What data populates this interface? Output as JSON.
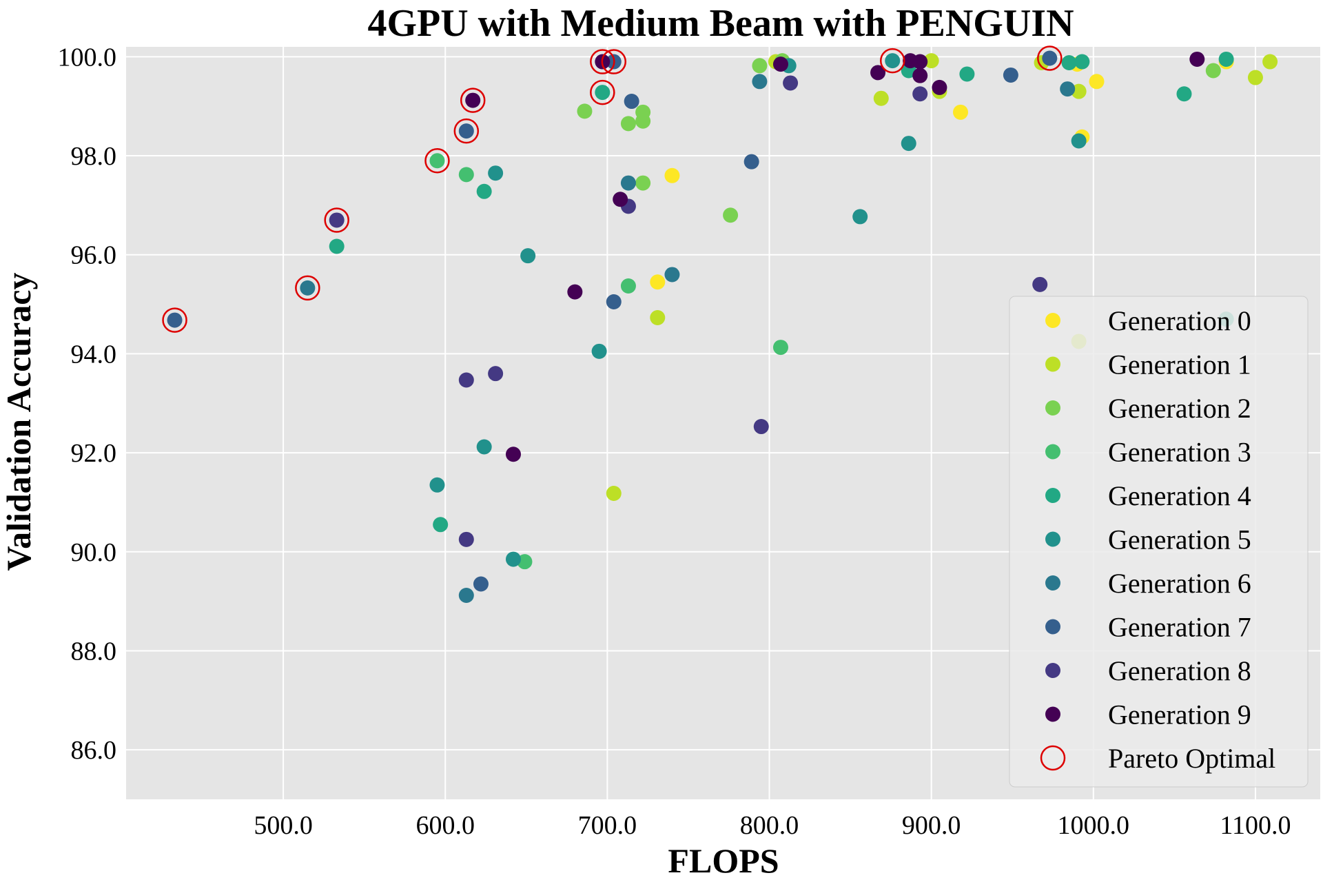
{
  "chart_data": {
    "type": "scatter",
    "title": "4GPU with Medium Beam with PENGUIN",
    "xlabel": "FLOPS",
    "ylabel": "Validation Accuracy",
    "xlim": [
      403,
      1140
    ],
    "ylim": [
      85.0,
      100.2
    ],
    "xticks": [
      "500.0",
      "600.0",
      "700.0",
      "800.0",
      "900.0",
      "1000.0",
      "1100.0"
    ],
    "yticks": [
      "86.0",
      "88.0",
      "90.0",
      "92.0",
      "94.0",
      "96.0",
      "98.0",
      "100.0"
    ],
    "grid": true,
    "legend_position": "lower-right",
    "background_color": "#e5e5e5",
    "pareto_color": "#dd0000",
    "series": [
      {
        "name": "Generation 0",
        "color": "#fde725",
        "points": [
          [
            740,
            97.6
          ],
          [
            731,
            95.45
          ],
          [
            918,
            98.88
          ],
          [
            990,
            99.85
          ],
          [
            993,
            98.38
          ],
          [
            1002,
            99.5
          ],
          [
            1082,
            99.9
          ]
        ]
      },
      {
        "name": "Generation 1",
        "color": "#bddf26",
        "points": [
          [
            804,
            99.9
          ],
          [
            869,
            99.16
          ],
          [
            900,
            99.92
          ],
          [
            905,
            99.3
          ],
          [
            968,
            99.88
          ],
          [
            991,
            99.3
          ],
          [
            704,
            91.18
          ],
          [
            731,
            94.73
          ],
          [
            1100,
            99.58
          ],
          [
            1109,
            99.9
          ],
          [
            991,
            94.25
          ]
        ]
      },
      {
        "name": "Generation 2",
        "color": "#7ad151",
        "points": [
          [
            686,
            98.9
          ],
          [
            713,
            98.65
          ],
          [
            722,
            98.88
          ],
          [
            722,
            98.7
          ],
          [
            722,
            97.45
          ],
          [
            776,
            96.8
          ],
          [
            794,
            99.82
          ],
          [
            808,
            99.92
          ],
          [
            1074,
            99.72
          ]
        ]
      },
      {
        "name": "Generation 3",
        "color": "#44bf70",
        "points": [
          [
            595,
            97.9
          ],
          [
            613,
            97.62
          ],
          [
            713,
            95.37
          ],
          [
            807,
            94.13
          ],
          [
            649,
            89.8
          ]
        ]
      },
      {
        "name": "Generation 4",
        "color": "#22a884",
        "points": [
          [
            533,
            96.17
          ],
          [
            624,
            97.28
          ],
          [
            697,
            99.28
          ],
          [
            597,
            90.55
          ],
          [
            886,
            99.72
          ],
          [
            922,
            99.65
          ],
          [
            985,
            99.88
          ],
          [
            993,
            99.9
          ],
          [
            1056,
            99.25
          ],
          [
            1082,
            99.95
          ],
          [
            1082,
            94.7
          ]
        ]
      },
      {
        "name": "Generation 5",
        "color": "#21918c",
        "points": [
          [
            631,
            97.65
          ],
          [
            651,
            95.98
          ],
          [
            695,
            94.05
          ],
          [
            595,
            91.35
          ],
          [
            624,
            92.12
          ],
          [
            642,
            89.85
          ],
          [
            812,
            99.82
          ],
          [
            856,
            96.77
          ],
          [
            876,
            99.92
          ],
          [
            886,
            98.25
          ],
          [
            991,
            98.3
          ]
        ]
      },
      {
        "name": "Generation 6",
        "color": "#2a788e",
        "points": [
          [
            515,
            95.33
          ],
          [
            613,
            89.12
          ],
          [
            713,
            97.45
          ],
          [
            740,
            95.6
          ],
          [
            794,
            99.5
          ],
          [
            984,
            99.35
          ]
        ]
      },
      {
        "name": "Generation 7",
        "color": "#355f8d",
        "points": [
          [
            433,
            94.68
          ],
          [
            613,
            98.5
          ],
          [
            704,
            99.9
          ],
          [
            704,
            95.05
          ],
          [
            715,
            99.1
          ],
          [
            622,
            89.35
          ],
          [
            789,
            97.88
          ],
          [
            949,
            99.63
          ],
          [
            973,
            99.97
          ]
        ]
      },
      {
        "name": "Generation 8",
        "color": "#443983",
        "points": [
          [
            533,
            96.7
          ],
          [
            613,
            93.47
          ],
          [
            631,
            93.6
          ],
          [
            613,
            90.25
          ],
          [
            713,
            96.98
          ],
          [
            795,
            92.53
          ],
          [
            813,
            99.47
          ],
          [
            893,
            99.25
          ],
          [
            967,
            95.4
          ]
        ]
      },
      {
        "name": "Generation 9",
        "color": "#440154",
        "points": [
          [
            617,
            99.12
          ],
          [
            642,
            91.97
          ],
          [
            680,
            95.25
          ],
          [
            697,
            99.9
          ],
          [
            708,
            97.12
          ],
          [
            807,
            99.85
          ],
          [
            867,
            99.68
          ],
          [
            887,
            99.92
          ],
          [
            893,
            99.9
          ],
          [
            893,
            99.62
          ],
          [
            905,
            99.38
          ],
          [
            1064,
            99.95
          ]
        ]
      }
    ],
    "pareto_optimal": {
      "name": "Pareto Optimal",
      "points": [
        [
          433,
          94.68
        ],
        [
          515,
          95.33
        ],
        [
          533,
          96.7
        ],
        [
          595,
          97.9
        ],
        [
          613,
          98.5
        ],
        [
          617,
          99.12
        ],
        [
          697,
          99.28
        ],
        [
          697,
          99.9
        ],
        [
          704,
          99.9
        ],
        [
          876,
          99.92
        ],
        [
          973,
          99.97
        ]
      ]
    }
  }
}
